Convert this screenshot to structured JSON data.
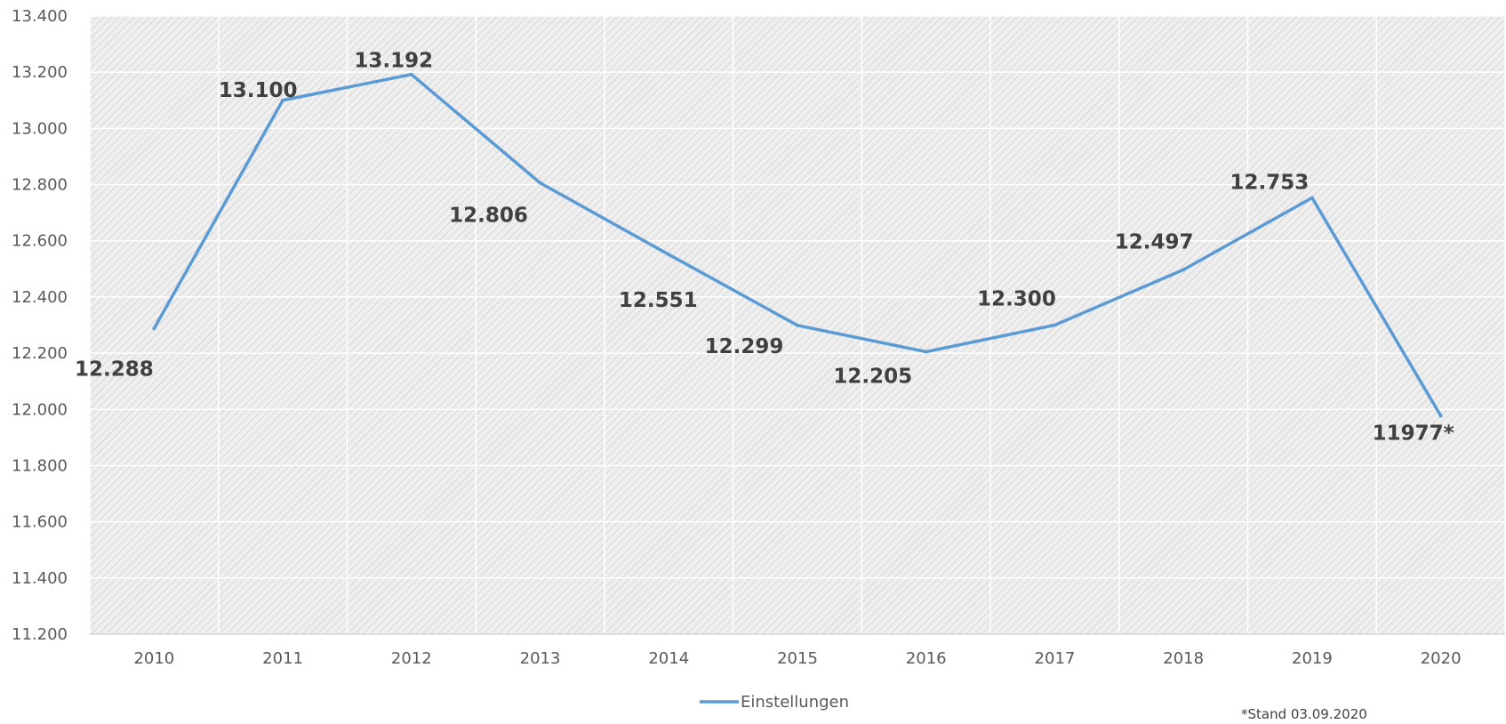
{
  "chart_data": {
    "type": "line",
    "x": [
      "2010",
      "2011",
      "2012",
      "2013",
      "2014",
      "2015",
      "2016",
      "2017",
      "2018",
      "2019",
      "2020"
    ],
    "series": [
      {
        "name": "Einstellungen",
        "values": [
          12288,
          13100,
          13192,
          12806,
          12551,
          12299,
          12205,
          12300,
          12497,
          12753,
          11977
        ],
        "data_labels": [
          "12.288",
          "13.100",
          "13.192",
          "12.806",
          "12.551",
          "12.299",
          "12.205",
          "12.300",
          "12.497",
          "12.753",
          "11977*"
        ],
        "color": "#5b9bd5"
      }
    ],
    "ylim": [
      11200,
      13400
    ],
    "yticks": [
      11200,
      11400,
      11600,
      11800,
      12000,
      12200,
      12400,
      12600,
      12800,
      13000,
      13200,
      13400
    ],
    "ytick_labels": [
      "11.200",
      "11.400",
      "11.600",
      "11.800",
      "12.000",
      "12.200",
      "12.400",
      "12.600",
      "12.800",
      "13.000",
      "13.200",
      "13.400"
    ],
    "grid": true,
    "legend_position": "bottom",
    "title": "",
    "xlabel": "",
    "ylabel": "",
    "footnote": "*Stand 03.09.2020"
  },
  "colors": {
    "line": "#5b9bd5",
    "plot_background": "#efefef",
    "hatch": "#d6d6d6",
    "gridline": "#ffffff"
  }
}
